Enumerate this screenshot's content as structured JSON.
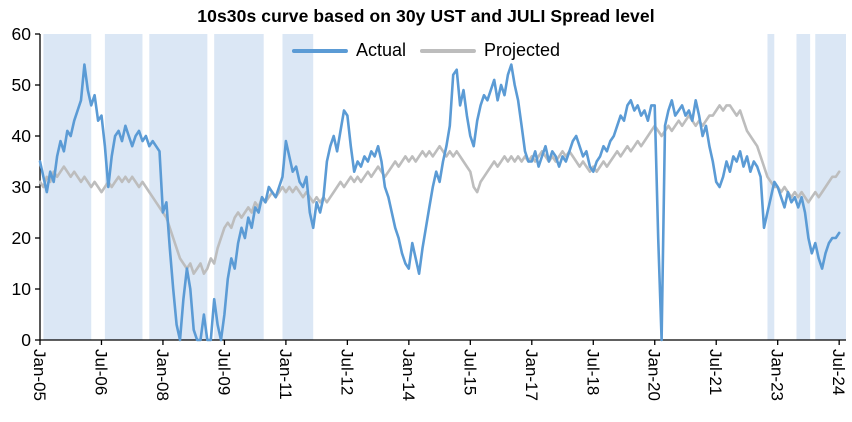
{
  "chart_data": {
    "type": "line",
    "title": "10s30s curve based on 30y UST and JULI Spread level",
    "xlabel": "",
    "ylabel": "",
    "ylim": [
      0,
      60
    ],
    "xlim": [
      0,
      236
    ],
    "grid": false,
    "legend_position": "top-center",
    "x_unit": "months since Jan-05",
    "y_ticks": [
      0,
      10,
      20,
      30,
      40,
      50,
      60
    ],
    "x_ticks": [
      {
        "pos": 0,
        "label": "Jan-05"
      },
      {
        "pos": 18,
        "label": "Jul-06"
      },
      {
        "pos": 36,
        "label": "Jan-08"
      },
      {
        "pos": 54,
        "label": "Jul-09"
      },
      {
        "pos": 72,
        "label": "Jan-11"
      },
      {
        "pos": 90,
        "label": "Jul-12"
      },
      {
        "pos": 108,
        "label": "Jan-14"
      },
      {
        "pos": 126,
        "label": "Jul-15"
      },
      {
        "pos": 144,
        "label": "Jan-17"
      },
      {
        "pos": 162,
        "label": "Jul-18"
      },
      {
        "pos": 180,
        "label": "Jan-20"
      },
      {
        "pos": 198,
        "label": "Jul-21"
      },
      {
        "pos": 216,
        "label": "Jan-23"
      },
      {
        "pos": 234,
        "label": "Jul-24"
      }
    ],
    "colors": {
      "actual": "#5B9BD5",
      "projected": "#BDBDBD",
      "band": "#DBE7F5",
      "axis": "#000000"
    },
    "bands": [
      [
        1,
        15
      ],
      [
        19,
        30
      ],
      [
        32,
        49
      ],
      [
        51,
        65.5
      ],
      [
        71,
        80
      ],
      [
        213,
        215
      ],
      [
        221.5,
        225.5
      ],
      [
        227,
        236
      ]
    ],
    "series": [
      {
        "name": "Actual",
        "color_key": "actual",
        "values": [
          35,
          32,
          29,
          33,
          31,
          36,
          39,
          37,
          41,
          40,
          43,
          45,
          47,
          54,
          49,
          46,
          48,
          43,
          44,
          38,
          30,
          36,
          40,
          41,
          39,
          42,
          40,
          38,
          40,
          41,
          39,
          40,
          38,
          39,
          38,
          37,
          25,
          27,
          18,
          10,
          3,
          0,
          8,
          14,
          10,
          2,
          0,
          0,
          5,
          0,
          0,
          8,
          3,
          0,
          5,
          12,
          16,
          14,
          19,
          22,
          20,
          24,
          22,
          26,
          25,
          28,
          27,
          30,
          29,
          28,
          30,
          32,
          39,
          36,
          33,
          34,
          31,
          30,
          32,
          25,
          22,
          27,
          25,
          28,
          35,
          38,
          40,
          37,
          41,
          45,
          44,
          38,
          33,
          35,
          34,
          36,
          35,
          37,
          36,
          38,
          35,
          30,
          28,
          25,
          22,
          20,
          17,
          15,
          14,
          19,
          16,
          13,
          18,
          22,
          26,
          30,
          33,
          31,
          35,
          38,
          42,
          52,
          53,
          46,
          49,
          44,
          40,
          38,
          43,
          46,
          48,
          47,
          49,
          51,
          47,
          50,
          48,
          52,
          54,
          50,
          47,
          42,
          37,
          35,
          35,
          37,
          34,
          36,
          38,
          35,
          37,
          36,
          34,
          36,
          35,
          37,
          39,
          40,
          38,
          36,
          37,
          34,
          33,
          35,
          36,
          38,
          37,
          39,
          40,
          42,
          44,
          43,
          46,
          47,
          45,
          46,
          44,
          45,
          43,
          46,
          46,
          20,
          0,
          42,
          45,
          47,
          44,
          45,
          46,
          44,
          45,
          43,
          47,
          44,
          40,
          42,
          38,
          35,
          31,
          30,
          32,
          35,
          33,
          36,
          35,
          37,
          34,
          36,
          33,
          35,
          34,
          32,
          22,
          25,
          28,
          31,
          30,
          28,
          26,
          29,
          27,
          28,
          26,
          28,
          25,
          20,
          17,
          19,
          16,
          14,
          17,
          19,
          20,
          20,
          21
        ]
      },
      {
        "name": "Projected",
        "color_key": "projected",
        "values": [
          31,
          30,
          32,
          31,
          33,
          32,
          33,
          34,
          33,
          32,
          33,
          32,
          31,
          32,
          31,
          30,
          31,
          30,
          29,
          30,
          31,
          30,
          31,
          32,
          31,
          32,
          31,
          32,
          31,
          30,
          31,
          30,
          29,
          28,
          27,
          26,
          25,
          24,
          22,
          20,
          18,
          16,
          15,
          14,
          15,
          13,
          14,
          15,
          13,
          14,
          16,
          15,
          18,
          20,
          22,
          23,
          22,
          24,
          25,
          24,
          25,
          26,
          25,
          27,
          26,
          28,
          27,
          28,
          29,
          28,
          29,
          30,
          29,
          30,
          29,
          30,
          29,
          28,
          29,
          28,
          27,
          28,
          27,
          28,
          27,
          28,
          29,
          30,
          31,
          30,
          31,
          32,
          31,
          32,
          31,
          32,
          33,
          32,
          33,
          34,
          33,
          32,
          33,
          34,
          35,
          34,
          35,
          36,
          35,
          36,
          35,
          36,
          37,
          36,
          37,
          36,
          37,
          38,
          37,
          36,
          37,
          36,
          37,
          36,
          35,
          34,
          33,
          30,
          29,
          31,
          32,
          33,
          34,
          35,
          34,
          35,
          36,
          35,
          36,
          35,
          36,
          35,
          36,
          35,
          36,
          35,
          36,
          37,
          36,
          35,
          36,
          35,
          36,
          37,
          36,
          37,
          36,
          35,
          34,
          35,
          34,
          33,
          34,
          33,
          34,
          35,
          34,
          35,
          36,
          37,
          36,
          37,
          38,
          37,
          38,
          39,
          38,
          39,
          40,
          41,
          42,
          41,
          40,
          41,
          42,
          41,
          42,
          43,
          42,
          43,
          44,
          43,
          42,
          43,
          42,
          43,
          44,
          44,
          45,
          46,
          45,
          46,
          46,
          45,
          44,
          45,
          43,
          41,
          40,
          39,
          38,
          36,
          34,
          32,
          31,
          30,
          30,
          29,
          30,
          29,
          28,
          29,
          28,
          29,
          28,
          27,
          28,
          29,
          28,
          29,
          30,
          31,
          32,
          32,
          33
        ]
      }
    ]
  }
}
